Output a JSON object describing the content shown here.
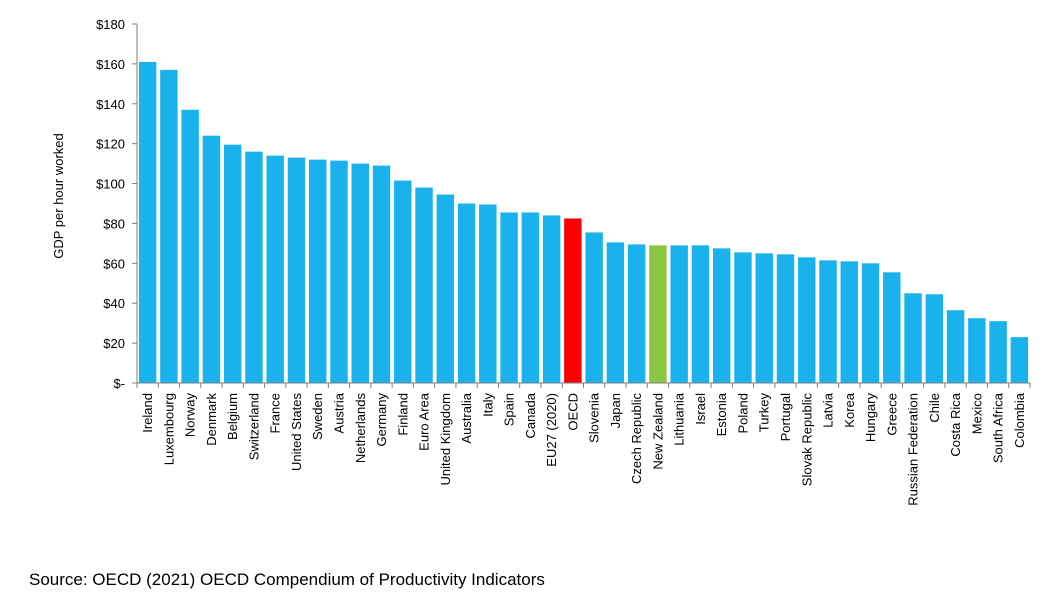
{
  "chart_data": {
    "type": "bar",
    "title": "",
    "xlabel": "",
    "ylabel": "GDP per hour worked",
    "ylim": [
      0,
      180
    ],
    "yticks": [
      0,
      20,
      40,
      60,
      80,
      100,
      120,
      140,
      160,
      180
    ],
    "ytick_labels": [
      "$-",
      "$20",
      "$40",
      "$60",
      "$80",
      "$100",
      "$120",
      "$140",
      "$160",
      "$180"
    ],
    "categories": [
      "Ireland",
      "Luxembourg",
      "Norway",
      "Denmark",
      "Belgium",
      "Switzerland",
      "France",
      "United States",
      "Sweden",
      "Austria",
      "Netherlands",
      "Germany",
      "Finland",
      "Euro Area",
      "United Kingdom",
      "Australia",
      "Italy",
      "Spain",
      "Canada",
      "EU27 (2020)",
      "OECD",
      "Slovenia",
      "Japan",
      "Czech Republic",
      "New Zealand",
      "Lithuania",
      "Israel",
      "Estonia",
      "Poland",
      "Turkey",
      "Portugal",
      "Slovak Republic",
      "Latvia",
      "Korea",
      "Hungary",
      "Greece",
      "Russian Federation",
      "Chile",
      "Costa Rica",
      "Mexico",
      "South Africa",
      "Colombia"
    ],
    "values": [
      161,
      157,
      137,
      124,
      119.5,
      116,
      114,
      113,
      112,
      111.5,
      110,
      109,
      101.5,
      98,
      94.5,
      90,
      89.5,
      85.5,
      85.5,
      84,
      82.5,
      75.5,
      70.5,
      69.5,
      69,
      69,
      69,
      67.5,
      65.5,
      65,
      64.5,
      63,
      61.5,
      61,
      60,
      55.5,
      45,
      44.5,
      36.5,
      32.5,
      31,
      23
    ],
    "colors": {
      "default": "#19b2ec",
      "highlight_oecd": "#ff0000",
      "highlight_new_zealand": "#8cc63f"
    },
    "highlights": {
      "OECD": "highlight_oecd",
      "New Zealand": "highlight_new_zealand"
    },
    "grid": false,
    "legend": "none"
  },
  "source_text": "Source: OECD (2021) OECD Compendium of Productivity Indicators"
}
